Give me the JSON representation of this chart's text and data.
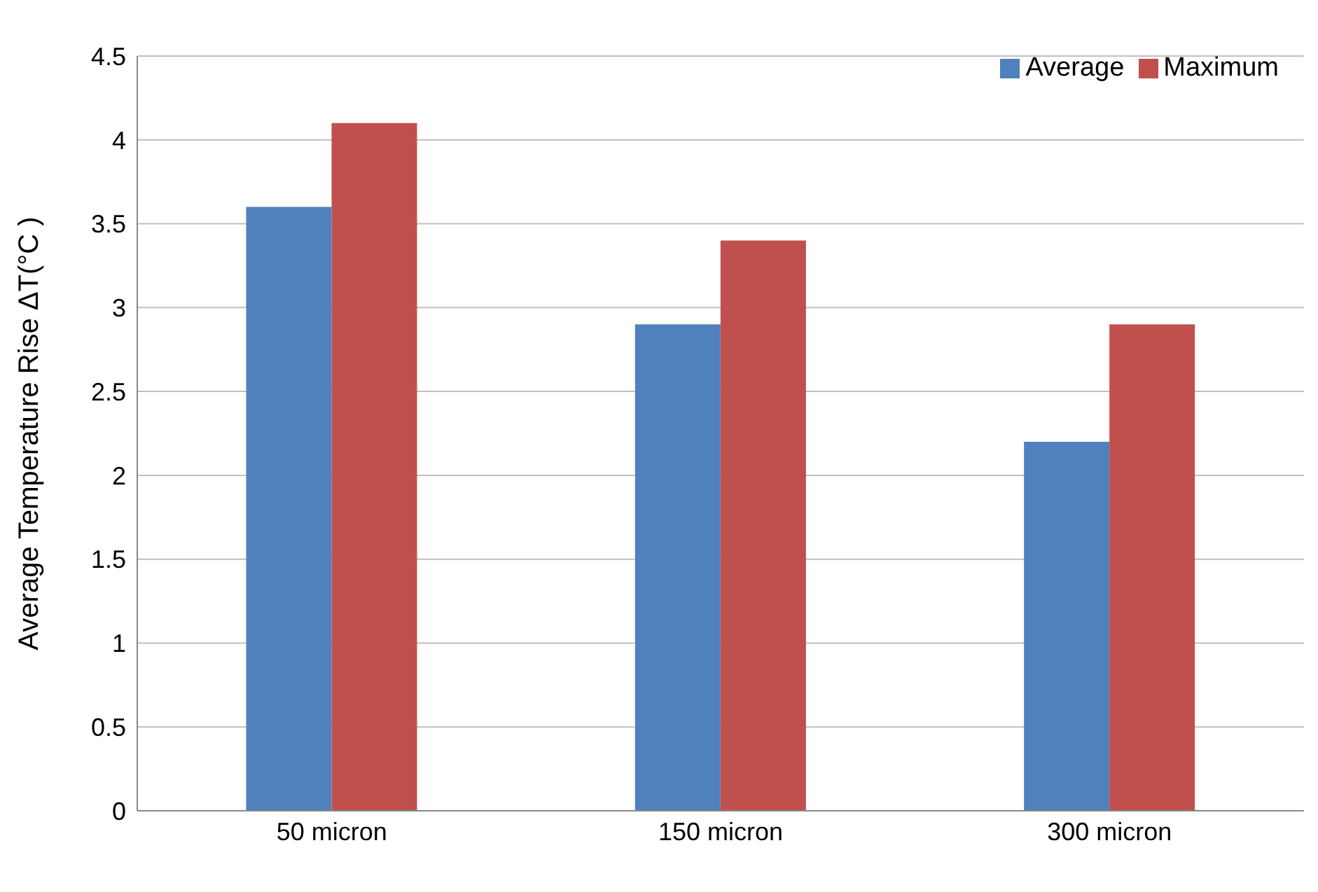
{
  "chart_data": {
    "type": "bar",
    "ylabel": "Average Temperature Rise  ΔT(°C )",
    "categories": [
      "50 micron",
      "150 micron",
      "300 micron"
    ],
    "series": [
      {
        "name": "Average",
        "color": "#4f81bd",
        "values": [
          3.6,
          2.9,
          2.2
        ]
      },
      {
        "name": "Maximum",
        "color": "#c0504d",
        "values": [
          4.1,
          3.4,
          2.9
        ]
      }
    ],
    "ylim": [
      0,
      4.5
    ],
    "yticks": [
      0,
      0.5,
      1,
      1.5,
      2,
      2.5,
      3,
      3.5,
      4,
      4.5
    ],
    "grid": "y",
    "legend": "top right"
  }
}
